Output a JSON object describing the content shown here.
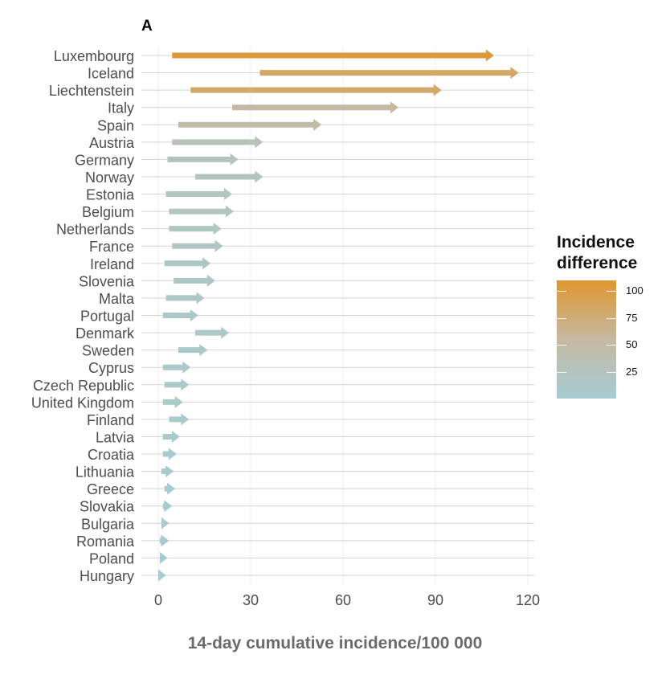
{
  "panel_label": "A",
  "chart_data": {
    "type": "arrow",
    "title": "",
    "xlabel": "14-day cumulative incidence/100 000",
    "ylabel": "",
    "xlim": [
      -5,
      122
    ],
    "xticks": [
      0,
      30,
      60,
      90,
      120
    ],
    "grid": true,
    "countries": [
      "Luxembourg",
      "Iceland",
      "Liechtenstein",
      "Italy",
      "Spain",
      "Austria",
      "Germany",
      "Norway",
      "Estonia",
      "Belgium",
      "Netherlands",
      "France",
      "Ireland",
      "Slovenia",
      "Malta",
      "Portugal",
      "Denmark",
      "Sweden",
      "Cyprus",
      "Czech Republic",
      "United Kingdom",
      "Finland",
      "Latvia",
      "Croatia",
      "Lithuania",
      "Greece",
      "Slovakia",
      "Bulgaria",
      "Romania",
      "Poland",
      "Hungary"
    ],
    "start": [
      4.5,
      33,
      10.5,
      24,
      6.5,
      4.5,
      3,
      12,
      2.5,
      3.5,
      3.5,
      4.5,
      2,
      5,
      2.5,
      1.5,
      12,
      6.5,
      1.5,
      2,
      1.5,
      3.5,
      1.5,
      1.5,
      1,
      2,
      1.5,
      1,
      0.5,
      0.5,
      0
    ],
    "end": [
      109,
      117,
      92,
      78,
      53,
      34,
      26,
      34,
      24,
      24.5,
      20.5,
      21,
      17,
      18.5,
      15,
      13,
      23,
      16,
      10.5,
      10,
      8,
      10,
      7,
      6,
      5,
      5.5,
      4.5,
      3.5,
      3.5,
      3,
      2.5
    ],
    "legend": {
      "title_lines": [
        "Incidence",
        "difference"
      ],
      "ticks": [
        100,
        75,
        50,
        25
      ],
      "range": [
        0,
        110
      ],
      "colors": {
        "low": "#a6ccd2",
        "mid": "#c5b9a2",
        "high": "#e0962f"
      }
    }
  }
}
